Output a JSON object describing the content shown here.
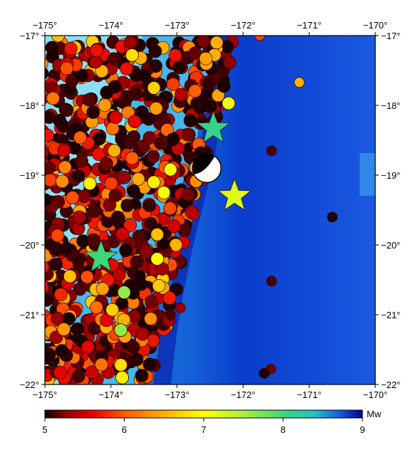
{
  "map": {
    "lon_range": [
      -175,
      -170
    ],
    "lat_range": [
      -22,
      -17
    ],
    "lon_ticks": [
      {
        "value": -175,
        "label": "−175°"
      },
      {
        "value": -174,
        "label": "−174°"
      },
      {
        "value": -173,
        "label": "−173°"
      },
      {
        "value": -172,
        "label": "−172°"
      },
      {
        "value": -171,
        "label": "−171°"
      },
      {
        "value": -170,
        "label": "−170°"
      }
    ],
    "lat_ticks": [
      {
        "value": -17,
        "label": "−17°"
      },
      {
        "value": -18,
        "label": "−18°"
      },
      {
        "value": -19,
        "label": "−19°"
      },
      {
        "value": -20,
        "label": "−20°"
      },
      {
        "value": -21,
        "label": "−21°"
      },
      {
        "value": -22,
        "label": "−22°"
      }
    ],
    "colors": {
      "land": "#6fd9f0",
      "shelf": "#1f8fe6",
      "deep": "#0b3fd6",
      "trench": "#0a2ab5",
      "frame": "#000000",
      "circle_stroke": "#3a0000",
      "star_stroke": "#222222",
      "beachball_fill": "#000000"
    },
    "stars": [
      {
        "lon": -172.45,
        "lat": -18.33,
        "mw": 8.1
      },
      {
        "lon": -174.15,
        "lat": -20.18,
        "mw": 8.0
      },
      {
        "lon": -172.13,
        "lat": -19.3,
        "mw": 7.2
      }
    ],
    "focal_mechanism": {
      "lon": -172.55,
      "lat": -18.9
    },
    "offshore_events": [
      {
        "lon": -171.15,
        "lat": -17.67,
        "mw": 6.5
      },
      {
        "lon": -171.57,
        "lat": -18.65,
        "mw": 5.1
      },
      {
        "lon": -170.65,
        "lat": -19.6,
        "mw": 5.0
      },
      {
        "lon": -171.57,
        "lat": -20.52,
        "mw": 5.1
      },
      {
        "lon": -171.58,
        "lat": -21.78,
        "mw": 5.2
      },
      {
        "lon": -171.68,
        "lat": -21.84,
        "mw": 5.0
      },
      {
        "lon": -171.75,
        "lat": -17.0,
        "mw": 5.9
      },
      {
        "lon": -172.95,
        "lat": -20.9,
        "mw": 5.3
      },
      {
        "lon": -173.1,
        "lat": -21.0,
        "mw": 5.1
      }
    ],
    "notable_events": [
      {
        "lon": -173.55,
        "lat": -17.32,
        "mw": 6.5
      },
      {
        "lon": -173.35,
        "lat": -17.75,
        "mw": 6.7
      },
      {
        "lon": -172.22,
        "lat": -17.97,
        "mw": 7.1
      },
      {
        "lon": -172.4,
        "lat": -17.1,
        "mw": 6.5
      },
      {
        "lon": -173.1,
        "lat": -18.92,
        "mw": 7.0
      },
      {
        "lon": -173.35,
        "lat": -19.1,
        "mw": 6.9
      },
      {
        "lon": -173.2,
        "lat": -19.25,
        "mw": 7.0
      },
      {
        "lon": -174.32,
        "lat": -19.12,
        "mw": 6.9
      },
      {
        "lon": -173.95,
        "lat": -18.65,
        "mw": 6.5
      },
      {
        "lon": -173.3,
        "lat": -19.85,
        "mw": 6.6
      },
      {
        "lon": -173.3,
        "lat": -20.2,
        "mw": 7.0
      },
      {
        "lon": -173.8,
        "lat": -20.68,
        "mw": 7.6
      },
      {
        "lon": -173.85,
        "lat": -21.22,
        "mw": 7.6
      },
      {
        "lon": -173.85,
        "lat": -21.72,
        "mw": 6.8
      },
      {
        "lon": -173.83,
        "lat": -21.9,
        "mw": 6.9
      },
      {
        "lon": -174.62,
        "lat": -20.45,
        "mw": 6.6
      },
      {
        "lon": -175.05,
        "lat": -17.4,
        "mw": 6.4
      },
      {
        "lon": -173.68,
        "lat": -17.28,
        "mw": 6.8
      },
      {
        "lon": -174.8,
        "lat": -17.0,
        "mw": 6.6
      }
    ]
  },
  "colorbar": {
    "label": "Mw",
    "min": 5,
    "max": 9,
    "ticks": [
      {
        "value": 5,
        "label": "5"
      },
      {
        "value": 6,
        "label": "6"
      },
      {
        "value": 7,
        "label": "7"
      },
      {
        "value": 8,
        "label": "8"
      },
      {
        "value": 9,
        "label": "9"
      }
    ],
    "stops": [
      {
        "mw": 5.0,
        "color": "#1a0000"
      },
      {
        "mw": 5.3,
        "color": "#9a0000"
      },
      {
        "mw": 5.6,
        "color": "#e60000"
      },
      {
        "mw": 6.0,
        "color": "#ff5a00"
      },
      {
        "mw": 6.5,
        "color": "#ffb000"
      },
      {
        "mw": 7.0,
        "color": "#ffff00"
      },
      {
        "mw": 7.5,
        "color": "#a8f040"
      },
      {
        "mw": 8.0,
        "color": "#3cd878"
      },
      {
        "mw": 8.4,
        "color": "#20c0c8"
      },
      {
        "mw": 8.7,
        "color": "#1a60e0"
      },
      {
        "mw": 9.0,
        "color": "#000090"
      }
    ]
  }
}
